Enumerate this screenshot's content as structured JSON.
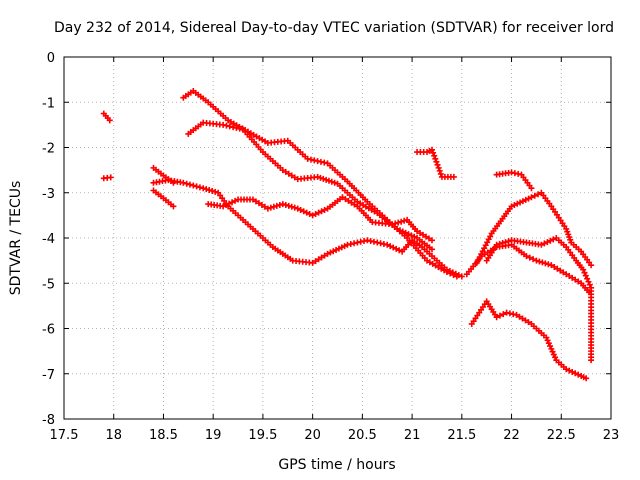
{
  "chart_data": {
    "type": "scatter",
    "title": "Day 232 of 2014, Sidereal Day-to-day VTEC variation (SDTVAR) for receiver lord",
    "xlabel": "GPS time / hours",
    "ylabel": "SDTVAR / TECUs",
    "xlim": [
      17.5,
      23
    ],
    "ylim": [
      -8,
      0
    ],
    "xticks": [
      17.5,
      18,
      18.5,
      19,
      19.5,
      20,
      20.5,
      21,
      21.5,
      22,
      22.5,
      23
    ],
    "xtick_labels": [
      "17.5",
      "18",
      "18.5",
      "19",
      "19.5",
      "20",
      "20.5",
      "21",
      "21.5",
      "22",
      "22.5",
      "23"
    ],
    "yticks": [
      0,
      -1,
      -2,
      -3,
      -4,
      -5,
      -6,
      -7,
      -8
    ],
    "ytick_labels": [
      "0",
      "-1",
      "-2",
      "-3",
      "-4",
      "-5",
      "-6",
      "-7",
      "-8"
    ],
    "grid": true,
    "marker": "plus",
    "color": "#ff0000",
    "series": [
      {
        "name": "s1",
        "points": [
          [
            17.9,
            -1.25
          ],
          [
            17.96,
            -1.4
          ]
        ]
      },
      {
        "name": "s2",
        "points": [
          [
            17.9,
            -2.68
          ],
          [
            17.97,
            -2.66
          ]
        ]
      },
      {
        "name": "s3",
        "points": [
          [
            18.4,
            -2.95
          ],
          [
            18.5,
            -3.12
          ],
          [
            18.6,
            -3.3
          ]
        ]
      },
      {
        "name": "s4",
        "points": [
          [
            18.4,
            -2.45
          ],
          [
            18.5,
            -2.62
          ],
          [
            18.6,
            -2.78
          ]
        ]
      },
      {
        "name": "s5",
        "points": [
          [
            18.4,
            -2.78
          ],
          [
            18.55,
            -2.72
          ],
          [
            18.7,
            -2.78
          ],
          [
            18.9,
            -2.9
          ],
          [
            19.05,
            -3.0
          ],
          [
            19.15,
            -3.3
          ],
          [
            19.3,
            -3.6
          ],
          [
            19.45,
            -3.9
          ],
          [
            19.6,
            -4.2
          ],
          [
            19.8,
            -4.5
          ],
          [
            20.0,
            -4.55
          ],
          [
            20.15,
            -4.35
          ],
          [
            20.35,
            -4.15
          ],
          [
            20.55,
            -4.05
          ],
          [
            20.75,
            -4.15
          ],
          [
            20.9,
            -4.3
          ],
          [
            21.0,
            -4.05
          ],
          [
            21.1,
            -4.2
          ],
          [
            21.2,
            -4.4
          ],
          [
            21.35,
            -4.7
          ],
          [
            21.5,
            -4.85
          ]
        ]
      },
      {
        "name": "s6",
        "points": [
          [
            18.7,
            -0.9
          ],
          [
            18.8,
            -0.75
          ],
          [
            18.95,
            -1.0
          ],
          [
            19.15,
            -1.4
          ],
          [
            19.35,
            -1.65
          ],
          [
            19.55,
            -1.9
          ],
          [
            19.75,
            -1.85
          ],
          [
            19.95,
            -2.25
          ],
          [
            20.15,
            -2.35
          ],
          [
            20.35,
            -2.75
          ],
          [
            20.55,
            -3.2
          ],
          [
            20.75,
            -3.6
          ],
          [
            20.95,
            -4.0
          ],
          [
            21.15,
            -4.5
          ],
          [
            21.35,
            -4.75
          ],
          [
            21.45,
            -4.85
          ]
        ]
      },
      {
        "name": "s7",
        "points": [
          [
            18.75,
            -1.7
          ],
          [
            18.9,
            -1.45
          ],
          [
            19.1,
            -1.5
          ],
          [
            19.3,
            -1.6
          ],
          [
            19.5,
            -2.1
          ],
          [
            19.7,
            -2.5
          ],
          [
            19.85,
            -2.7
          ],
          [
            20.05,
            -2.65
          ],
          [
            20.25,
            -2.8
          ],
          [
            20.45,
            -3.2
          ],
          [
            20.65,
            -3.45
          ],
          [
            20.85,
            -3.8
          ],
          [
            21.05,
            -4.0
          ],
          [
            21.2,
            -4.25
          ]
        ]
      },
      {
        "name": "s8",
        "points": [
          [
            18.95,
            -3.25
          ],
          [
            19.1,
            -3.3
          ],
          [
            19.25,
            -3.15
          ],
          [
            19.4,
            -3.15
          ],
          [
            19.55,
            -3.35
          ],
          [
            19.7,
            -3.25
          ],
          [
            19.85,
            -3.35
          ],
          [
            20.0,
            -3.5
          ],
          [
            20.15,
            -3.35
          ],
          [
            20.3,
            -3.1
          ],
          [
            20.45,
            -3.3
          ],
          [
            20.6,
            -3.65
          ],
          [
            20.8,
            -3.7
          ],
          [
            20.95,
            -3.6
          ],
          [
            21.05,
            -3.85
          ],
          [
            21.2,
            -4.05
          ]
        ]
      },
      {
        "name": "s9",
        "points": [
          [
            21.05,
            -2.1
          ],
          [
            21.15,
            -2.1
          ],
          [
            21.2,
            -2.05
          ],
          [
            21.3,
            -2.65
          ],
          [
            21.42,
            -2.65
          ]
        ]
      },
      {
        "name": "s10",
        "points": [
          [
            21.6,
            -5.9
          ],
          [
            21.75,
            -5.4
          ],
          [
            21.85,
            -5.75
          ],
          [
            21.95,
            -5.65
          ],
          [
            22.05,
            -5.7
          ],
          [
            22.2,
            -5.9
          ],
          [
            22.35,
            -6.2
          ],
          [
            22.45,
            -6.7
          ],
          [
            22.55,
            -6.9
          ],
          [
            22.7,
            -7.05
          ],
          [
            22.75,
            -7.1
          ]
        ]
      },
      {
        "name": "s11",
        "points": [
          [
            21.55,
            -4.8
          ],
          [
            21.7,
            -4.4
          ],
          [
            21.85,
            -4.2
          ],
          [
            22.0,
            -4.15
          ],
          [
            22.15,
            -4.4
          ],
          [
            22.25,
            -4.5
          ],
          [
            22.4,
            -4.6
          ],
          [
            22.55,
            -4.8
          ],
          [
            22.7,
            -5.0
          ],
          [
            22.78,
            -5.2
          ]
        ]
      },
      {
        "name": "s12",
        "points": [
          [
            21.65,
            -4.55
          ],
          [
            21.8,
            -3.9
          ],
          [
            22.0,
            -3.3
          ],
          [
            22.2,
            -3.1
          ],
          [
            22.3,
            -3.0
          ],
          [
            22.4,
            -3.3
          ],
          [
            22.55,
            -3.8
          ],
          [
            22.6,
            -4.1
          ],
          [
            22.7,
            -4.3
          ],
          [
            22.8,
            -4.6
          ]
        ]
      },
      {
        "name": "s13",
        "points": [
          [
            21.85,
            -2.6
          ],
          [
            22.0,
            -2.55
          ],
          [
            22.1,
            -2.6
          ],
          [
            22.2,
            -2.9
          ]
        ]
      },
      {
        "name": "s14",
        "points": [
          [
            21.75,
            -4.5
          ],
          [
            21.85,
            -4.15
          ],
          [
            22.0,
            -4.05
          ],
          [
            22.15,
            -4.1
          ],
          [
            22.3,
            -4.15
          ],
          [
            22.45,
            -4.0
          ],
          [
            22.55,
            -4.2
          ],
          [
            22.65,
            -4.5
          ],
          [
            22.72,
            -4.7
          ],
          [
            22.8,
            -5.1
          ],
          [
            22.8,
            -5.6
          ],
          [
            22.8,
            -6.3
          ],
          [
            22.8,
            -6.7
          ]
        ]
      }
    ]
  }
}
